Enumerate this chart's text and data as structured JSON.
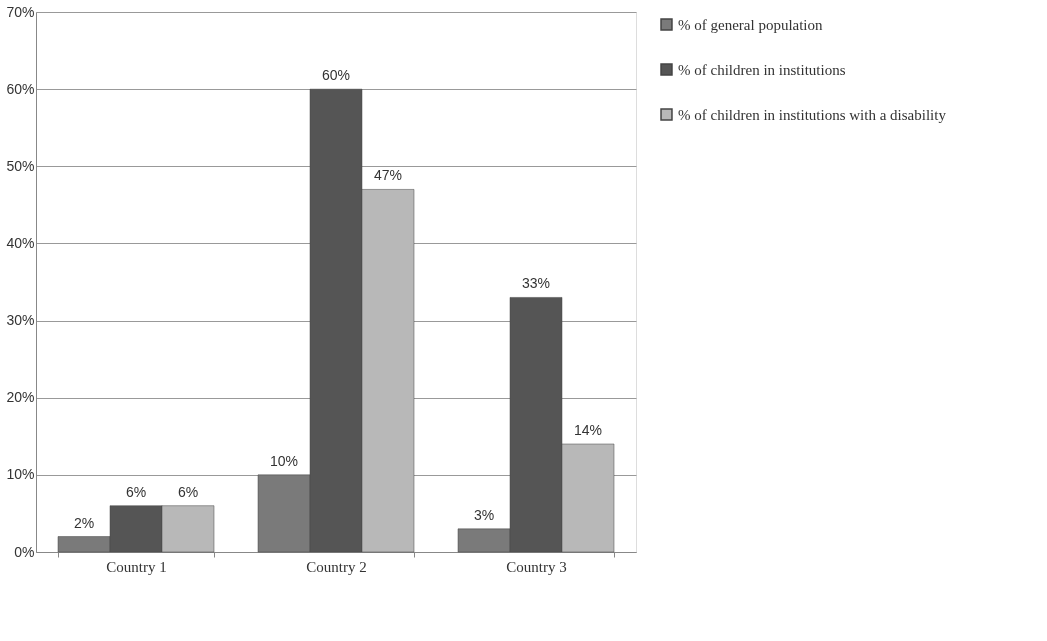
{
  "chart_data": {
    "type": "bar",
    "categories": [
      "Country 1",
      "Country 2",
      "Country 3"
    ],
    "series": [
      {
        "name": "% of general population",
        "color": "#7a7a7a",
        "values": [
          2,
          10,
          3
        ],
        "value_labels": [
          "2%",
          "10%",
          "3%"
        ]
      },
      {
        "name": "% of children in institutions",
        "color": "#555555",
        "values": [
          6,
          60,
          33
        ],
        "value_labels": [
          "6%",
          "60%",
          "33%"
        ]
      },
      {
        "name": "% of children in institutions with a disability",
        "color": "#b8b8b8",
        "values": [
          6,
          47,
          14
        ],
        "value_labels": [
          "6%",
          "47%",
          "14%"
        ]
      }
    ],
    "ylim": [
      0,
      70
    ],
    "yticks": [
      {
        "value": 0,
        "label": "0%"
      },
      {
        "value": 10,
        "label": "10%"
      },
      {
        "value": 20,
        "label": "20%"
      },
      {
        "value": 30,
        "label": "30%"
      },
      {
        "value": 40,
        "label": "40%"
      },
      {
        "value": 50,
        "label": "50%"
      },
      {
        "value": 60,
        "label": "60%"
      },
      {
        "value": 70,
        "label": "70%"
      }
    ],
    "grid": "y",
    "legend": "right"
  }
}
